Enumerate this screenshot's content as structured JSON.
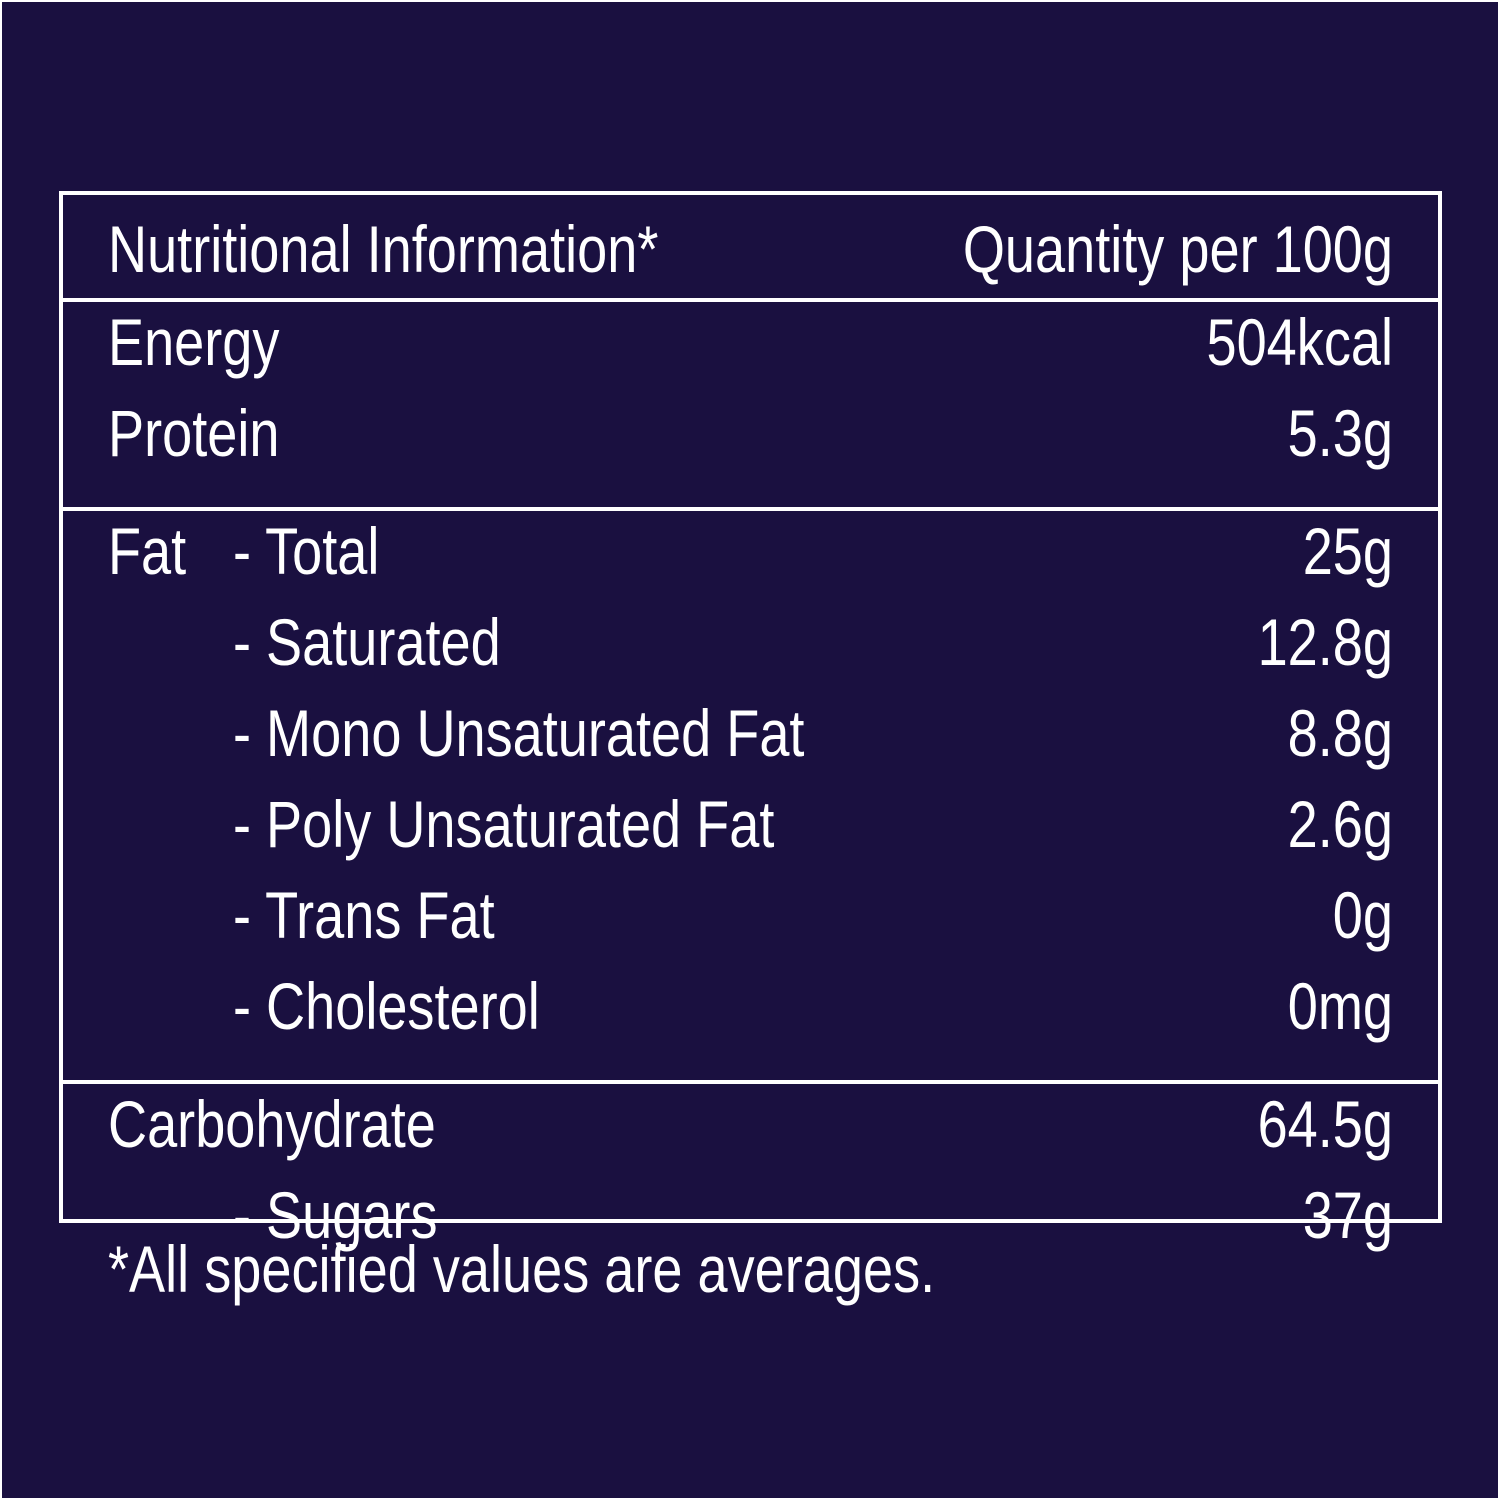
{
  "table": {
    "header": [
      "Nutritional Information*",
      "Quantity per 100g"
    ],
    "sections": [
      [
        {
          "label": "Energy",
          "value": "504kcal"
        },
        {
          "label": "Protein",
          "value": "5.3g"
        }
      ],
      [
        {
          "label": "Fat",
          "sub": "- Total",
          "value": "25g"
        },
        {
          "sub": "- Saturated",
          "value": "12.8g"
        },
        {
          "sub": "- Mono Unsaturated Fat",
          "value": "8.8g"
        },
        {
          "sub": "- Poly Unsaturated Fat",
          "value": "2.6g"
        },
        {
          "sub": "- Trans Fat",
          "value": "0g"
        },
        {
          "sub": "- Cholesterol",
          "value": "0mg"
        }
      ],
      [
        {
          "label": "Carbohydrate",
          "value": "64.5g"
        },
        {
          "sub": "- Sugars",
          "value": "37g"
        }
      ]
    ]
  },
  "footnote": "*All specified values are averages."
}
